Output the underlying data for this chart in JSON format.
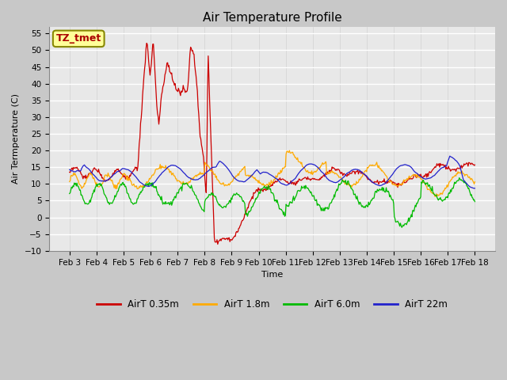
{
  "title": "Air Temperature Profile",
  "xlabel": "Time",
  "ylabel": "Air Termperature (C)",
  "ylim": [
    -10,
    57
  ],
  "yticks": [
    -10,
    -5,
    0,
    5,
    10,
    15,
    20,
    25,
    30,
    35,
    40,
    45,
    50,
    55
  ],
  "x_labels": [
    "Feb 3",
    "Feb 4",
    "Feb 5",
    "Feb 6",
    "Feb 7",
    "Feb 8",
    "Feb 9",
    "Feb 10",
    "Feb 11",
    "Feb 12",
    "Feb 13",
    "Feb 14",
    "Feb 15",
    "Feb 16",
    "Feb 17",
    "Feb 18"
  ],
  "annotation_text": "TZ_tmet",
  "annotation_color": "#aa0000",
  "annotation_bg": "#ffff99",
  "annotation_edge": "#888800",
  "colors": {
    "red": "#cc0000",
    "orange": "#ffaa00",
    "green": "#00bb00",
    "blue": "#2222cc"
  },
  "legend_labels": [
    "AirT 0.35m",
    "AirT 1.8m",
    "AirT 6.0m",
    "AirT 22m"
  ],
  "fig_bg": "#c8c8c8",
  "plot_bg": "#e8e8e8",
  "grid_color": "#ffffff",
  "figsize": [
    6.4,
    4.8
  ],
  "dpi": 100
}
